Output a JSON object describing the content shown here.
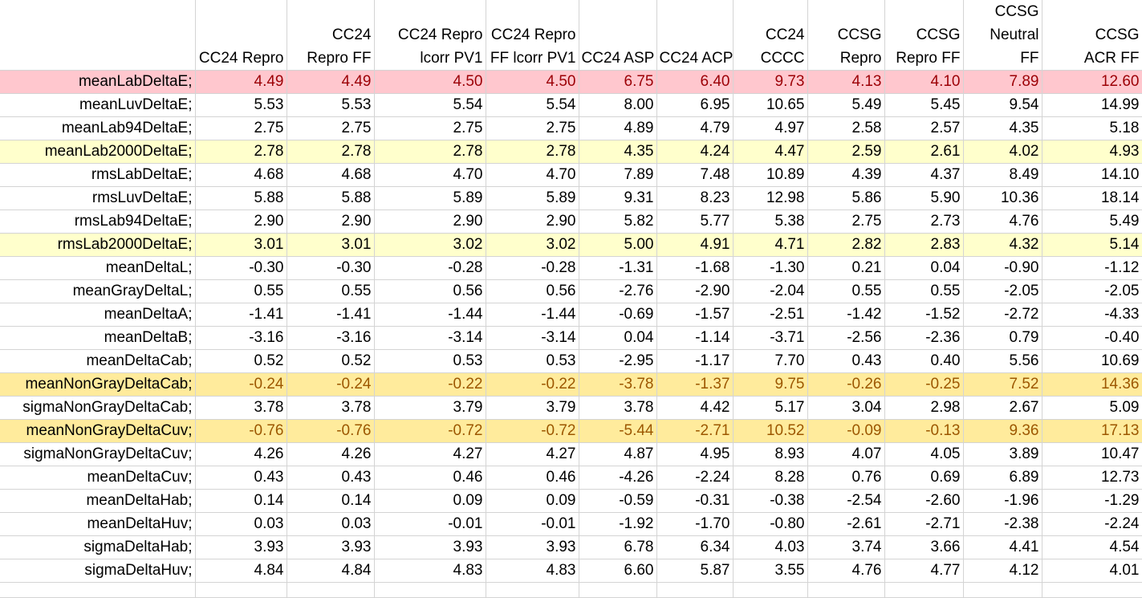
{
  "columns": [
    {
      "label_lines": [
        "",
        "",
        "CC24 Repro"
      ]
    },
    {
      "label_lines": [
        "",
        "CC24",
        "Repro FF"
      ]
    },
    {
      "label_lines": [
        "",
        "CC24 Repro",
        "lcorr PV1"
      ]
    },
    {
      "label_lines": [
        "",
        "CC24 Repro",
        "FF lcorr PV1"
      ]
    },
    {
      "label_lines": [
        "",
        "",
        "CC24 ASP"
      ]
    },
    {
      "label_lines": [
        "",
        "",
        "CC24 ACP"
      ]
    },
    {
      "label_lines": [
        "",
        "CC24",
        "CCCC"
      ]
    },
    {
      "label_lines": [
        "",
        "CCSG",
        "Repro"
      ]
    },
    {
      "label_lines": [
        "",
        "CCSG",
        "Repro FF"
      ]
    },
    {
      "label_lines": [
        "CCSG",
        "Neutral",
        "FF"
      ]
    },
    {
      "label_lines": [
        "",
        "CCSG",
        "ACR FF"
      ]
    }
  ],
  "rows": [
    {
      "label": "meanLabDeltaE;",
      "highlight": "red",
      "values": [
        "4.49",
        "4.49",
        "4.50",
        "4.50",
        "6.75",
        "6.40",
        "9.73",
        "4.13",
        "4.10",
        "7.89",
        "12.60"
      ]
    },
    {
      "label": "meanLuvDeltaE;",
      "highlight": "none",
      "values": [
        "5.53",
        "5.53",
        "5.54",
        "5.54",
        "8.00",
        "6.95",
        "10.65",
        "5.49",
        "5.45",
        "9.54",
        "14.99"
      ]
    },
    {
      "label": "meanLab94DeltaE;",
      "highlight": "none",
      "values": [
        "2.75",
        "2.75",
        "2.75",
        "2.75",
        "4.89",
        "4.79",
        "4.97",
        "2.58",
        "2.57",
        "4.35",
        "5.18"
      ]
    },
    {
      "label": "meanLab2000DeltaE;",
      "highlight": "yellow",
      "values": [
        "2.78",
        "2.78",
        "2.78",
        "2.78",
        "4.35",
        "4.24",
        "4.47",
        "2.59",
        "2.61",
        "4.02",
        "4.93"
      ]
    },
    {
      "label": "rmsLabDeltaE;",
      "highlight": "none",
      "values": [
        "4.68",
        "4.68",
        "4.70",
        "4.70",
        "7.89",
        "7.48",
        "10.89",
        "4.39",
        "4.37",
        "8.49",
        "14.10"
      ]
    },
    {
      "label": "rmsLuvDeltaE;",
      "highlight": "none",
      "values": [
        "5.88",
        "5.88",
        "5.89",
        "5.89",
        "9.31",
        "8.23",
        "12.98",
        "5.86",
        "5.90",
        "10.36",
        "18.14"
      ]
    },
    {
      "label": "rmsLab94DeltaE;",
      "highlight": "none",
      "values": [
        "2.90",
        "2.90",
        "2.90",
        "2.90",
        "5.82",
        "5.77",
        "5.38",
        "2.75",
        "2.73",
        "4.76",
        "5.49"
      ]
    },
    {
      "label": "rmsLab2000DeltaE;",
      "highlight": "yellow",
      "values": [
        "3.01",
        "3.01",
        "3.02",
        "3.02",
        "5.00",
        "4.91",
        "4.71",
        "2.82",
        "2.83",
        "4.32",
        "5.14"
      ]
    },
    {
      "label": "meanDeltaL;",
      "highlight": "none",
      "values": [
        "-0.30",
        "-0.30",
        "-0.28",
        "-0.28",
        "-1.31",
        "-1.68",
        "-1.30",
        "0.21",
        "0.04",
        "-0.90",
        "-1.12"
      ]
    },
    {
      "label": "meanGrayDeltaL;",
      "highlight": "none",
      "values": [
        "0.55",
        "0.55",
        "0.56",
        "0.56",
        "-2.76",
        "-2.90",
        "-2.04",
        "0.55",
        "0.55",
        "-2.05",
        "-2.05"
      ]
    },
    {
      "label": "meanDeltaA;",
      "highlight": "none",
      "values": [
        "-1.41",
        "-1.41",
        "-1.44",
        "-1.44",
        "-0.69",
        "-1.57",
        "-2.51",
        "-1.42",
        "-1.52",
        "-2.72",
        "-4.33"
      ]
    },
    {
      "label": "meanDeltaB;",
      "highlight": "none",
      "values": [
        "-3.16",
        "-3.16",
        "-3.14",
        "-3.14",
        "0.04",
        "-1.14",
        "-3.71",
        "-2.56",
        "-2.36",
        "0.79",
        "-0.40"
      ]
    },
    {
      "label": "meanDeltaCab;",
      "highlight": "none",
      "values": [
        "0.52",
        "0.52",
        "0.53",
        "0.53",
        "-2.95",
        "-1.17",
        "7.70",
        "0.43",
        "0.40",
        "5.56",
        "10.69"
      ]
    },
    {
      "label": "meanNonGrayDeltaCab;",
      "highlight": "orange",
      "values": [
        "-0.24",
        "-0.24",
        "-0.22",
        "-0.22",
        "-3.78",
        "-1.37",
        "9.75",
        "-0.26",
        "-0.25",
        "7.52",
        "14.36"
      ]
    },
    {
      "label": "sigmaNonGrayDeltaCab;",
      "highlight": "none",
      "values": [
        "3.78",
        "3.78",
        "3.79",
        "3.79",
        "3.78",
        "4.42",
        "5.17",
        "3.04",
        "2.98",
        "2.67",
        "5.09"
      ]
    },
    {
      "label": "meanNonGrayDeltaCuv;",
      "highlight": "orange",
      "values": [
        "-0.76",
        "-0.76",
        "-0.72",
        "-0.72",
        "-5.44",
        "-2.71",
        "10.52",
        "-0.09",
        "-0.13",
        "9.36",
        "17.13"
      ]
    },
    {
      "label": "sigmaNonGrayDeltaCuv;",
      "highlight": "none",
      "values": [
        "4.26",
        "4.26",
        "4.27",
        "4.27",
        "4.87",
        "4.95",
        "8.93",
        "4.07",
        "4.05",
        "3.89",
        "10.47"
      ]
    },
    {
      "label": "meanDeltaCuv;",
      "highlight": "none",
      "values": [
        "0.43",
        "0.43",
        "0.46",
        "0.46",
        "-4.26",
        "-2.24",
        "8.28",
        "0.76",
        "0.69",
        "6.89",
        "12.73"
      ]
    },
    {
      "label": "meanDeltaHab;",
      "highlight": "none",
      "values": [
        "0.14",
        "0.14",
        "0.09",
        "0.09",
        "-0.59",
        "-0.31",
        "-0.38",
        "-2.54",
        "-2.60",
        "-1.96",
        "-1.29"
      ]
    },
    {
      "label": "meanDeltaHuv;",
      "highlight": "none",
      "values": [
        "0.03",
        "0.03",
        "-0.01",
        "-0.01",
        "-1.92",
        "-1.70",
        "-0.80",
        "-2.61",
        "-2.71",
        "-2.38",
        "-2.24"
      ]
    },
    {
      "label": "sigmaDeltaHab;",
      "highlight": "none",
      "values": [
        "3.93",
        "3.93",
        "3.93",
        "3.93",
        "6.78",
        "6.34",
        "4.03",
        "3.74",
        "3.66",
        "4.41",
        "4.54"
      ]
    },
    {
      "label": "sigmaDeltaHuv;",
      "highlight": "none",
      "values": [
        "4.84",
        "4.84",
        "4.83",
        "4.83",
        "6.60",
        "5.87",
        "3.55",
        "4.76",
        "4.77",
        "4.12",
        "4.01"
      ]
    }
  ],
  "colors": {
    "red_fill": "#ffc7ce",
    "red_text": "#9c0006",
    "yellow_fill": "#ffffcc",
    "orange_fill": "#ffeb9c",
    "orange_text": "#9c5700",
    "gridline": "#d4d4d4"
  }
}
